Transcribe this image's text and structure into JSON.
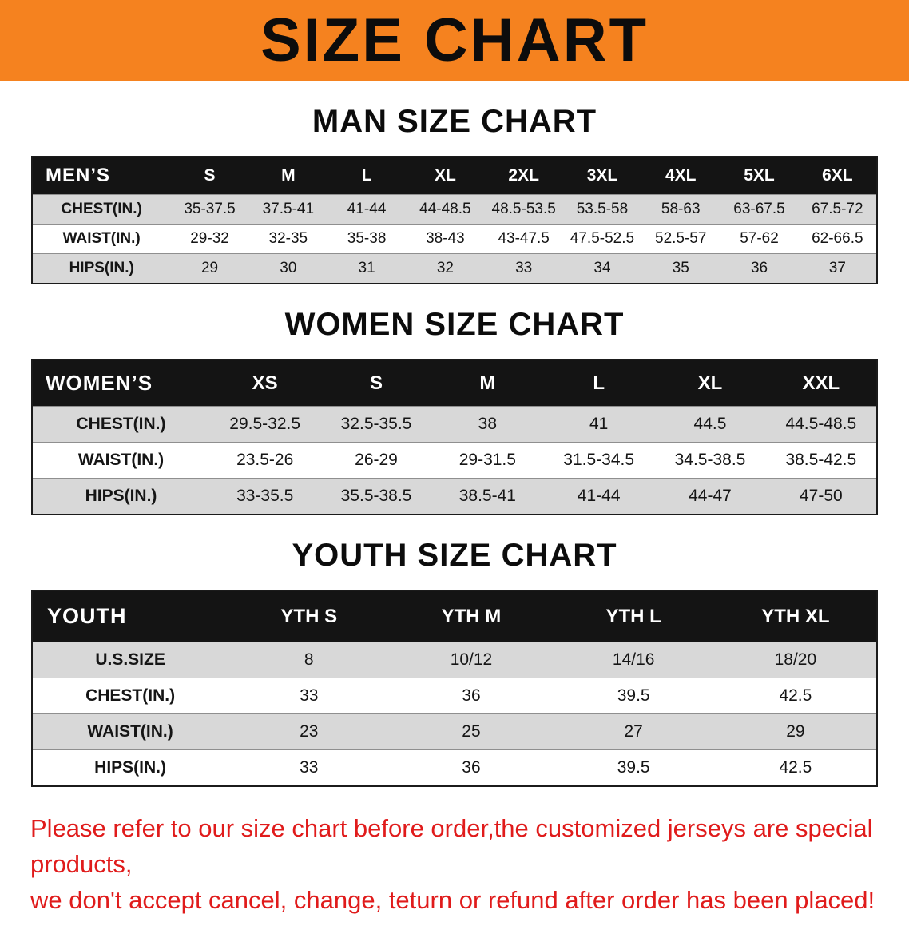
{
  "banner": {
    "title": "SIZE CHART"
  },
  "sections": [
    {
      "heading": "MAN SIZE CHART",
      "table": {
        "header": [
          "MEN’S",
          "S",
          "M",
          "L",
          "XL",
          "2XL",
          "3XL",
          "4XL",
          "5XL",
          "6XL"
        ],
        "rows": [
          [
            "CHEST(IN.)",
            "35-37.5",
            "37.5-41",
            "41-44",
            "44-48.5",
            "48.5-53.5",
            "53.5-58",
            "58-63",
            "63-67.5",
            "67.5-72"
          ],
          [
            "WAIST(IN.)",
            "29-32",
            "32-35",
            "35-38",
            "38-43",
            "43-47.5",
            "47.5-52.5",
            "52.5-57",
            "57-62",
            "62-66.5"
          ],
          [
            "HIPS(IN.)",
            "29",
            "30",
            "31",
            "32",
            "33",
            "34",
            "35",
            "36",
            "37"
          ]
        ]
      }
    },
    {
      "heading": "WOMEN SIZE CHART",
      "table": {
        "header": [
          "WOMEN’S",
          "XS",
          "S",
          "M",
          "L",
          "XL",
          "XXL"
        ],
        "rows": [
          [
            "CHEST(IN.)",
            "29.5-32.5",
            "32.5-35.5",
            "38",
            "41",
            "44.5",
            "44.5-48.5"
          ],
          [
            "WAIST(IN.)",
            "23.5-26",
            "26-29",
            "29-31.5",
            "31.5-34.5",
            "34.5-38.5",
            "38.5-42.5"
          ],
          [
            "HIPS(IN.)",
            "33-35.5",
            "35.5-38.5",
            "38.5-41",
            "41-44",
            "44-47",
            "47-50"
          ]
        ]
      }
    },
    {
      "heading": "YOUTH SIZE CHART",
      "table": {
        "header": [
          "YOUTH",
          "YTH S",
          "YTH M",
          "YTH L",
          "YTH XL"
        ],
        "rows": [
          [
            "U.S.SIZE",
            "8",
            "10/12",
            "14/16",
            "18/20"
          ],
          [
            "CHEST(IN.)",
            "33",
            "36",
            "39.5",
            "42.5"
          ],
          [
            "WAIST(IN.)",
            "23",
            "25",
            "27",
            "29"
          ],
          [
            "HIPS(IN.)",
            "33",
            "36",
            "39.5",
            "42.5"
          ]
        ]
      }
    }
  ],
  "footer": {
    "lines": [
      "Please refer to our size chart before order,the customized jerseys are special products,",
      "we don't accept cancel, change, teturn or refund after order has been placed!"
    ]
  },
  "colors": {
    "banner_bg": "#f5821f",
    "header_bg": "#141414",
    "row_alt": "#d8d8d8",
    "note_red": "#e01b1b"
  }
}
